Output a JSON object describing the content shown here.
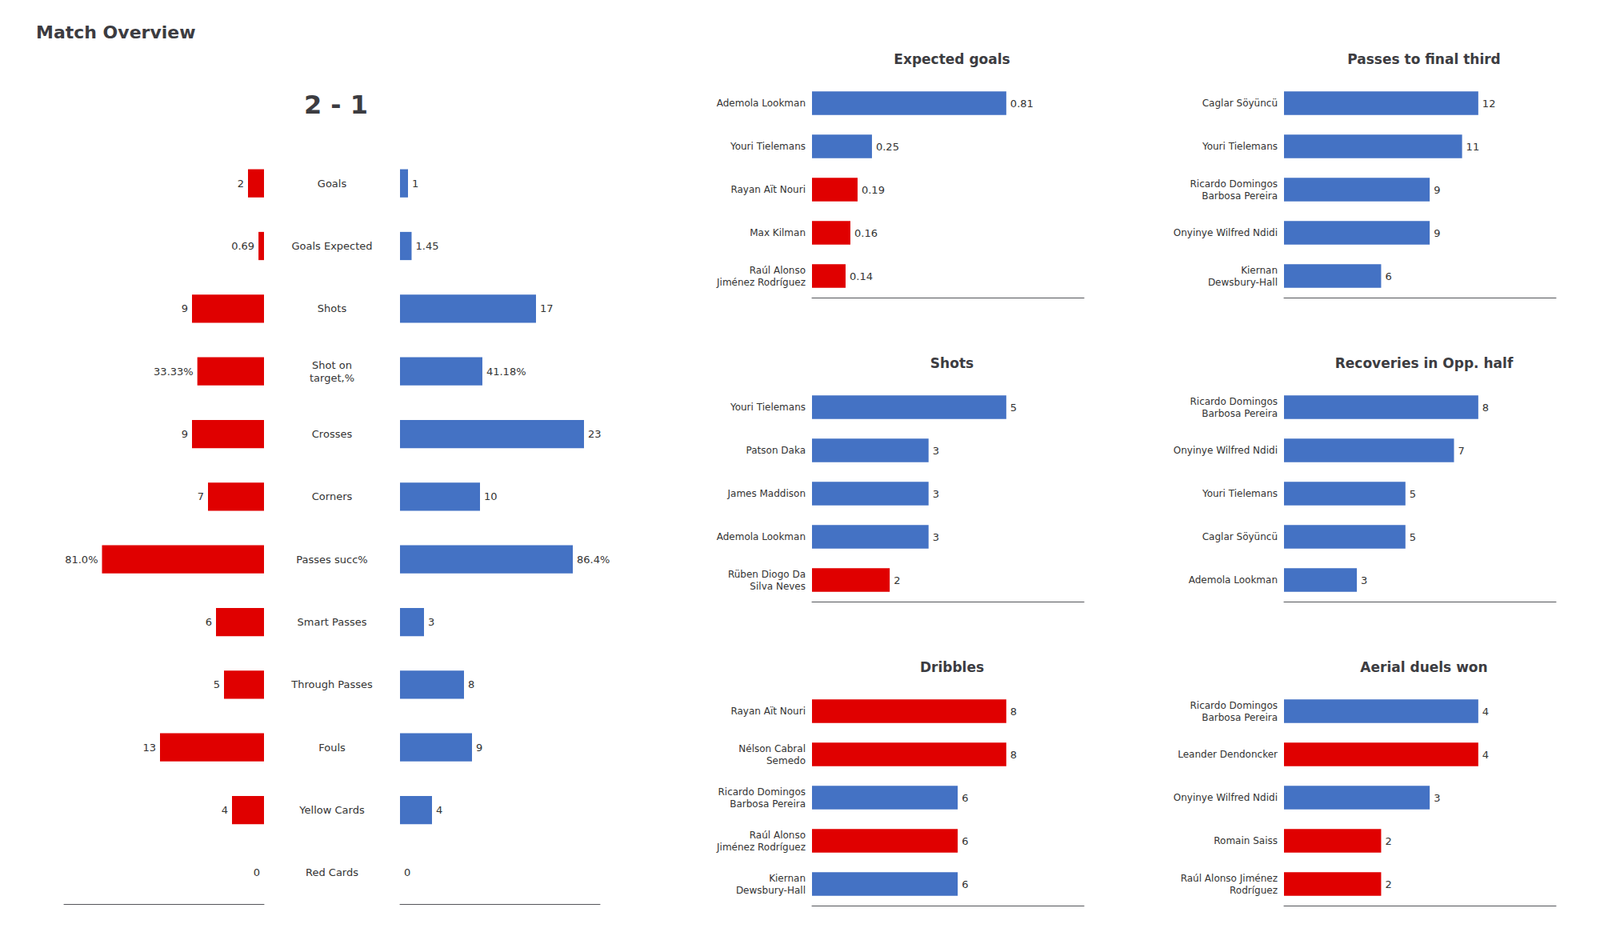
{
  "chart_data": [
    {
      "type": "bar",
      "title": "Match Overview",
      "subtitle": "2 - 1",
      "orientation": "horizontal",
      "categories": [
        "Goals",
        "Goals Expected",
        "Shots",
        "Shot on\ntarget,%",
        "Crosses",
        "Corners",
        "Passes succ%",
        "Smart Passes",
        "Through Passes",
        "Fouls",
        "Yellow Cards",
        "Red Cards"
      ],
      "series": [
        {
          "color": "#E00000",
          "values": [
            2,
            0.69,
            9,
            null,
            9,
            7,
            null,
            6,
            5,
            13,
            4,
            0
          ]
        },
        {
          "color": "#4472C4",
          "values": [
            1,
            1.45,
            17,
            null,
            23,
            10,
            null,
            3,
            8,
            9,
            4,
            0
          ]
        },
        {
          "color": "#E00000",
          "axis": "y2",
          "values": [
            null,
            null,
            null,
            33.33,
            null,
            null,
            81.0,
            null,
            null,
            null,
            null,
            null
          ],
          "value_labels": [
            null,
            null,
            null,
            "33.33%",
            null,
            null,
            "81.0%",
            null,
            null,
            null,
            null,
            null
          ]
        },
        {
          "color": "#4472C4",
          "axis": "y2",
          "values": [
            null,
            null,
            null,
            41.18,
            null,
            null,
            86.4,
            null,
            null,
            null,
            null,
            null
          ],
          "value_labels": [
            null,
            null,
            null,
            "41.18%",
            null,
            null,
            "86.4%",
            null,
            null,
            null,
            null,
            null
          ]
        }
      ],
      "xlim": [
        0,
        25
      ],
      "y2lim": [
        0,
        100
      ],
      "data_labels": true,
      "tick_labels": "y",
      "grid": false
    },
    {
      "type": "bar",
      "title": "Expected goals",
      "orientation": "horizontal",
      "categories": [
        "Ademola Lookman",
        "Youri Tielemans",
        "Rayan Aït Nouri",
        "Max Kilman",
        "Raúl Alonso\nJiménez Rodríguez"
      ],
      "values": [
        0.81,
        0.25,
        0.19,
        0.16,
        0.14
      ],
      "colors": [
        "#4472C4",
        "#4472C4",
        "#E00000",
        "#E00000",
        "#E00000"
      ],
      "xlim": [
        0,
        1.134
      ],
      "data_labels": true,
      "tick_labels": "y",
      "grid": false
    },
    {
      "type": "bar",
      "title": "Passes to final third",
      "orientation": "horizontal",
      "categories": [
        "Caglar Söyüncü",
        "Youri Tielemans",
        "Ricardo Domingos\nBarbosa Pereira",
        "Onyinye Wilfred Ndidi",
        "Kiernan\nDewsbury-Hall"
      ],
      "values": [
        12,
        11,
        9,
        9,
        6
      ],
      "colors": [
        "#4472C4",
        "#4472C4",
        "#4472C4",
        "#4472C4",
        "#4472C4"
      ],
      "xlim": [
        0,
        16.8
      ],
      "data_labels": true,
      "tick_labels": "y",
      "grid": false
    },
    {
      "type": "bar",
      "title": "Shots",
      "orientation": "horizontal",
      "categories": [
        "Youri Tielemans",
        "Patson Daka",
        "James Maddison",
        "Ademola Lookman",
        "Rüben Diogo Da\nSilva Neves"
      ],
      "values": [
        5,
        3,
        3,
        3,
        2
      ],
      "colors": [
        "#4472C4",
        "#4472C4",
        "#4472C4",
        "#4472C4",
        "#E00000"
      ],
      "xlim": [
        0,
        7.0
      ],
      "data_labels": true,
      "tick_labels": "y",
      "grid": false
    },
    {
      "type": "bar",
      "title": "Recoveries in Opp. half",
      "orientation": "horizontal",
      "categories": [
        "Ricardo Domingos\nBarbosa Pereira",
        "Onyinye Wilfred Ndidi",
        "Youri Tielemans",
        "Caglar Söyüncü",
        "Ademola Lookman"
      ],
      "values": [
        8,
        7,
        5,
        5,
        3
      ],
      "colors": [
        "#4472C4",
        "#4472C4",
        "#4472C4",
        "#4472C4",
        "#4472C4"
      ],
      "xlim": [
        0,
        11.2
      ],
      "data_labels": true,
      "tick_labels": "y",
      "grid": false
    },
    {
      "type": "bar",
      "title": "Dribbles",
      "orientation": "horizontal",
      "categories": [
        "Rayan Aït Nouri",
        "Nélson Cabral\nSemedo",
        "Ricardo Domingos\nBarbosa Pereira",
        "Raúl Alonso\nJiménez Rodríguez",
        "Kiernan\nDewsbury-Hall"
      ],
      "values": [
        8,
        8,
        6,
        6,
        6
      ],
      "colors": [
        "#E00000",
        "#E00000",
        "#4472C4",
        "#E00000",
        "#4472C4"
      ],
      "xlim": [
        0,
        11.2
      ],
      "data_labels": true,
      "tick_labels": "y",
      "grid": false
    },
    {
      "type": "bar",
      "title": "Aerial duels won",
      "orientation": "horizontal",
      "categories": [
        "Ricardo Domingos\nBarbosa Pereira",
        "Leander Dendoncker",
        "Onyinye Wilfred Ndidi",
        "Romain Saiss",
        "Raúl Alonso Jiménez\nRodríguez"
      ],
      "values": [
        4,
        4,
        3,
        2,
        2
      ],
      "colors": [
        "#4472C4",
        "#E00000",
        "#4472C4",
        "#E00000",
        "#E00000"
      ],
      "xlim": [
        0,
        5.6
      ],
      "data_labels": true,
      "tick_labels": "y",
      "grid": false
    }
  ]
}
